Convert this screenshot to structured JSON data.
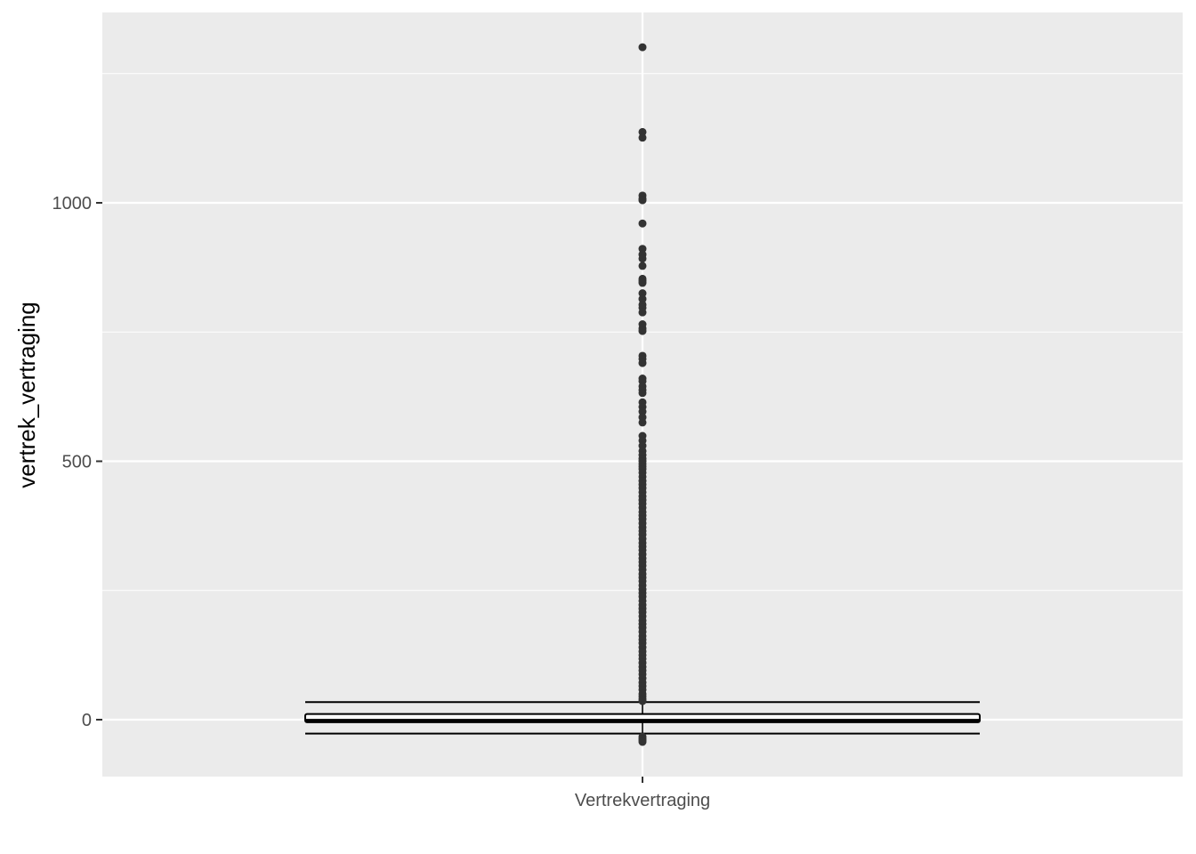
{
  "chart_data": {
    "type": "boxplot",
    "title": "",
    "xlabel": "",
    "ylabel": "vertrek_vertraging",
    "categories": [
      "Vertrekvertraging"
    ],
    "ylim": [
      -110,
      1370
    ],
    "y_ticks": [
      0,
      500,
      1000
    ],
    "y_minor_ticks": [
      250,
      750,
      1250
    ],
    "grid": true,
    "panel_background": "#EBEBEB",
    "box": {
      "category": "Vertrekvertraging",
      "q1": -5,
      "median": -2,
      "q3": 11,
      "whisker_low": -27,
      "whisker_high": 34
    },
    "outliers": [
      1301,
      1137,
      1126,
      1014,
      1008,
      1005,
      960,
      911,
      900,
      892,
      878,
      853,
      849,
      845,
      825,
      814,
      803,
      797,
      788,
      765,
      757,
      752,
      704,
      698,
      690,
      660,
      655,
      645,
      638,
      632,
      614,
      605,
      596,
      585,
      575,
      549,
      540,
      530,
      520,
      512,
      505,
      500,
      495,
      490,
      485,
      478,
      470,
      462,
      455,
      448,
      440,
      432,
      425,
      418,
      410,
      402,
      395,
      388,
      380,
      372,
      365,
      358,
      350,
      342,
      335,
      328,
      320,
      312,
      305,
      298,
      290,
      282,
      275,
      268,
      260,
      252,
      245,
      238,
      230,
      222,
      215,
      208,
      200,
      192,
      185,
      178,
      170,
      162,
      155,
      148,
      140,
      132,
      125,
      118,
      110,
      102,
      95,
      88,
      80,
      72,
      65,
      58,
      50,
      45,
      40,
      36,
      -33,
      -37,
      -40,
      -43
    ]
  }
}
